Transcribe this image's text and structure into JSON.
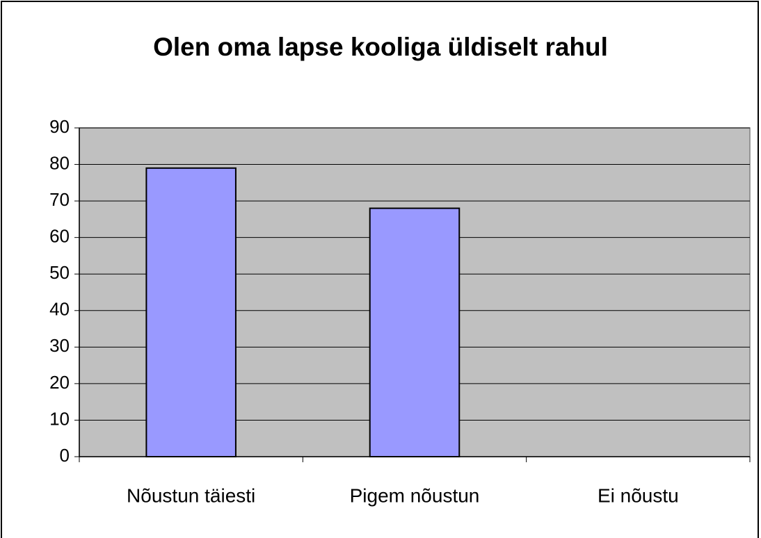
{
  "chart_data": {
    "type": "bar",
    "title": "Olen oma lapse kooliga üldiselt rahul",
    "categories": [
      "Nõustun täiesti",
      "Pigem nõustun",
      "Ei nõustu"
    ],
    "values": [
      79,
      68,
      0
    ],
    "color": "#9999ff",
    "ylim": [
      0,
      90
    ],
    "yticks": [
      0,
      10,
      20,
      30,
      40,
      50,
      60,
      70,
      80,
      90
    ],
    "grid": true
  }
}
